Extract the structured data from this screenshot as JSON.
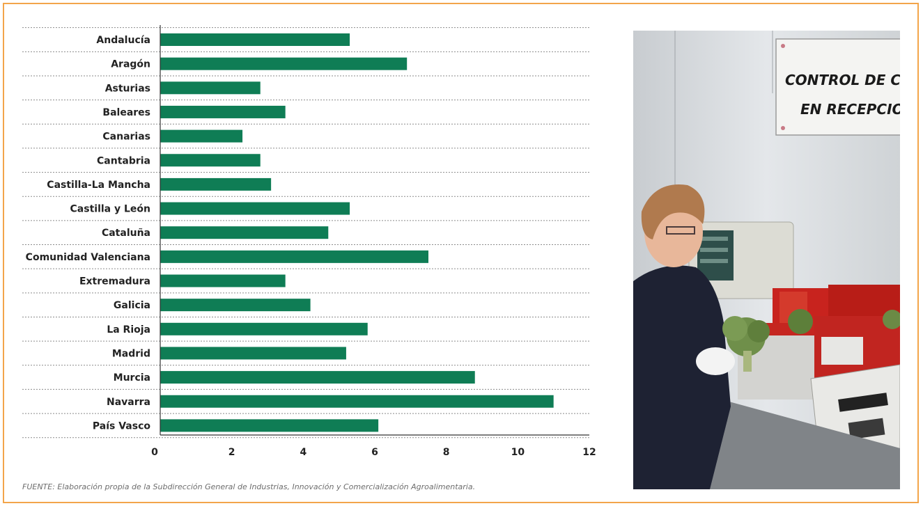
{
  "chart_data": {
    "type": "bar",
    "orientation": "horizontal",
    "categories": [
      "Andalucía",
      "Aragón",
      "Asturias",
      "Baleares",
      "Canarias",
      "Cantabria",
      "Castilla-La Mancha",
      "Castilla y León",
      "Cataluña",
      "Comunidad Valenciana",
      "Extremadura",
      "Galicia",
      "La Rioja",
      "Madrid",
      "Murcia",
      "Navarra",
      "País Vasco"
    ],
    "values": [
      5.3,
      6.9,
      2.8,
      3.5,
      2.3,
      2.8,
      3.1,
      5.3,
      4.7,
      7.5,
      3.5,
      4.2,
      5.8,
      5.2,
      8.8,
      11.0,
      6.1
    ],
    "xlim": [
      0,
      12
    ],
    "xticks": [
      "0",
      "2",
      "4",
      "6",
      "8",
      "10",
      "12"
    ],
    "bar_color": "#0f7d55",
    "gridlines": "dotted horizontal separators",
    "source": "FUENTE: Elaboración propia de la Subdirección General de Industrias, Innovación y Comercialización Agroalimentaria."
  },
  "photo": {
    "sign_line_1": "CONTROL DE CALIDA",
    "sign_line_2": "EN RECEPCION"
  },
  "colors": {
    "frame_border": "#f3a54a",
    "bar": "#0f7d55",
    "label_text": "#222222",
    "source_text": "#6d6d6d"
  }
}
